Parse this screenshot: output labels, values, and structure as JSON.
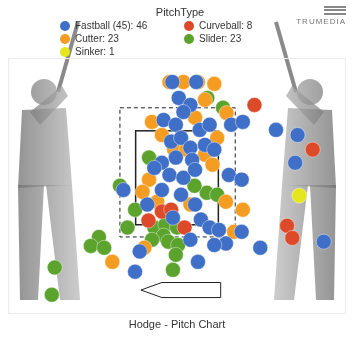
{
  "chart_data": {
    "type": "scatter",
    "title": "Hodge - Pitch Chart",
    "legend_title": "PitchType",
    "logo": "TRUMEDIA",
    "legend": "top",
    "grid": false,
    "tick_labels": false,
    "marker": "circle",
    "xlim": [
      -2.9,
      2.9
    ],
    "ylim": [
      -0.4,
      5.05
    ],
    "series": [
      {
        "name": "Fastball (45): 46",
        "color": "#3f6fc6",
        "x": [
          -0.08,
          0.33,
          0.03,
          0.23,
          0.11,
          -0.23,
          -0.02,
          0.39,
          0.56,
          0.93,
          1.13,
          -0.1,
          0.07,
          0.23,
          -0.02,
          0.26,
          0.48,
          0.64,
          -0.26,
          -0.13,
          0.11,
          0.31,
          0.07,
          0.31,
          -0.26,
          -0.07,
          0.41,
          0.56,
          0.72,
          1.11,
          0.84,
          0.36,
          1.43,
          1.7,
          2.07,
          2.03,
          2.52,
          -0.92,
          -0.51,
          -0.39,
          0.89,
          1.11,
          -0.72,
          -0.64,
          0.23,
          0.64
        ],
        "y": [
          4.54,
          4.54,
          4.2,
          4.05,
          3.9,
          3.73,
          3.63,
          3.52,
          3.63,
          3.63,
          3.69,
          3.27,
          3.35,
          3.14,
          2.93,
          2.88,
          3.2,
          3.1,
          2.82,
          2.56,
          2.5,
          2.67,
          2.14,
          1.93,
          2.24,
          1.65,
          1.61,
          1.44,
          1.39,
          1.35,
          1.1,
          0.71,
          1.01,
          3.52,
          3.41,
          2.82,
          1.14,
          2.24,
          1.93,
          2.71,
          2.56,
          2.46,
          0.5,
          0.93,
          1.18,
          1.07
        ]
      },
      {
        "name": "Curveball: 8",
        "color": "#dd4a2a",
        "x": [
          1.33,
          2.33,
          1.89,
          1.98,
          -0.49,
          -0.26,
          0.13,
          -0.1
        ],
        "y": [
          4.05,
          3.1,
          1.48,
          1.22,
          1.59,
          1.78,
          1.44,
          1.82
        ]
      },
      {
        "name": "Cutter: 23",
        "color": "#f59d23",
        "x": [
          -0.13,
          0.11,
          0.36,
          0.64,
          0.48,
          0.85,
          -0.43,
          0.31,
          -0.26,
          -0.05,
          0.48,
          0.61,
          -0.48,
          -0.59,
          -0.34,
          0.23,
          0.84,
          1.13,
          0.98,
          -0.56,
          -1.11,
          0.16,
          0.69
        ],
        "y": [
          4.54,
          4.54,
          4.54,
          4.5,
          4.16,
          3.88,
          3.69,
          3.78,
          3.41,
          3.1,
          2.99,
          2.78,
          2.46,
          2.2,
          1.99,
          1.93,
          1.99,
          1.82,
          1.35,
          1.01,
          0.71,
          3.1,
          3.35
        ]
      },
      {
        "name": "Slider: 23",
        "color": "#5ba32c",
        "x": [
          0.52,
          0.79,
          0.51,
          0.69,
          -0.48,
          -0.98,
          -0.72,
          -0.85,
          -0.39,
          -0.2,
          0,
          -0.23,
          -0.43,
          -0.15,
          0.02,
          -1.34,
          -1.48,
          -1.25,
          -0.07,
          -2.1,
          -2.15,
          -0.02,
          0.3
        ],
        "y": [
          4.2,
          3.99,
          2.18,
          2.14,
          2.93,
          2.33,
          1.82,
          1.44,
          1.44,
          1.5,
          1.44,
          1.27,
          1.18,
          1.14,
          1.07,
          1.24,
          1.05,
          1.01,
          0.54,
          0.59,
          0.01,
          0.86,
          2.33
        ]
      },
      {
        "name": "Sinker: 1",
        "color": "#e6e61e",
        "x": [
          2.1
        ],
        "y": [
          2.12
        ]
      }
    ]
  }
}
